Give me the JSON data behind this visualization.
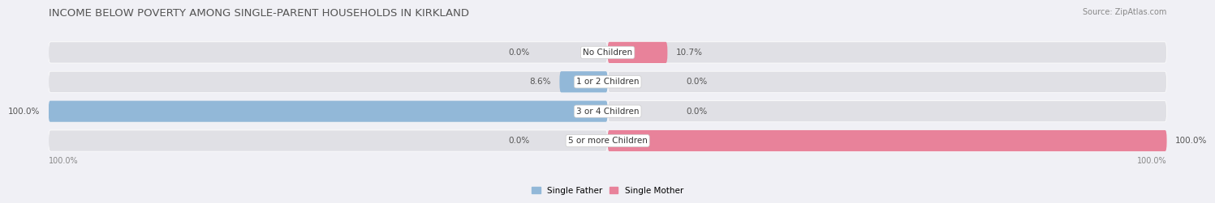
{
  "title": "INCOME BELOW POVERTY AMONG SINGLE-PARENT HOUSEHOLDS IN KIRKLAND",
  "source": "Source: ZipAtlas.com",
  "categories": [
    "No Children",
    "1 or 2 Children",
    "3 or 4 Children",
    "5 or more Children"
  ],
  "single_father": [
    0.0,
    8.6,
    100.0,
    0.0
  ],
  "single_mother": [
    10.7,
    0.0,
    0.0,
    100.0
  ],
  "father_color": "#92b8d8",
  "mother_color": "#e8829a",
  "bar_bg_color": "#e0e0e5",
  "bar_height": 0.72,
  "legend_father": "Single Father",
  "legend_mother": "Single Mother",
  "title_fontsize": 9.5,
  "label_fontsize": 7.5,
  "category_fontsize": 7.5,
  "source_fontsize": 7,
  "bg_color": "#f0f0f5"
}
